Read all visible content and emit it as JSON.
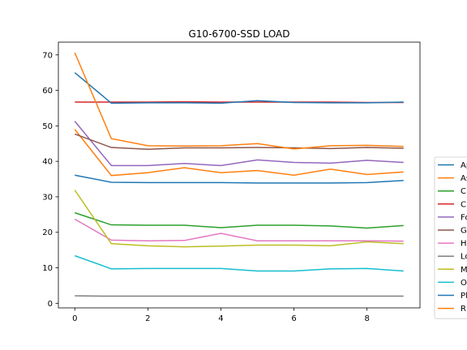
{
  "chart_data": {
    "type": "line",
    "title": "G10-6700-SSD LOAD",
    "xlabel": "",
    "ylabel": "",
    "x": [
      0,
      1,
      2,
      3,
      4,
      5,
      6,
      7,
      8,
      9
    ],
    "xlim": [
      -0.45,
      9.45
    ],
    "ylim": [
      -1.3,
      73.6
    ],
    "xticks": [
      0,
      2,
      4,
      6,
      8
    ],
    "yticks": [
      0,
      10,
      20,
      30,
      40,
      50,
      60,
      70
    ],
    "grid": false,
    "legend": "right-outside",
    "series": [
      {
        "name": "Ap",
        "color": "#1f77b4",
        "values": [
          36.1,
          34.1,
          34.0,
          34.0,
          34.0,
          33.9,
          33.9,
          33.9,
          34.0,
          34.6
        ]
      },
      {
        "name": "As",
        "color": "#ff7f0e",
        "values": [
          49.0,
          36.0,
          36.8,
          38.2,
          36.8,
          37.4,
          36.1,
          37.8,
          36.3,
          37.0
        ]
      },
      {
        "name": "C",
        "color": "#2ca02c",
        "values": [
          25.5,
          22.1,
          22.0,
          22.0,
          21.3,
          22.0,
          22.0,
          21.8,
          21.2,
          21.9
        ]
      },
      {
        "name": "C",
        "color": "#d62728",
        "values": [
          56.7,
          56.7,
          56.7,
          56.8,
          56.7,
          56.7,
          56.7,
          56.7,
          56.6,
          56.6
        ]
      },
      {
        "name": "Fo",
        "color": "#9467bd",
        "values": [
          51.3,
          38.8,
          38.8,
          39.4,
          38.8,
          40.4,
          39.7,
          39.5,
          40.3,
          39.7
        ]
      },
      {
        "name": "G",
        "color": "#8c564b",
        "values": [
          47.7,
          43.9,
          43.4,
          43.8,
          43.8,
          43.9,
          43.8,
          43.6,
          43.9,
          43.7
        ]
      },
      {
        "name": "H",
        "color": "#e377c2",
        "values": [
          23.7,
          17.8,
          17.6,
          17.7,
          19.7,
          17.6,
          17.6,
          17.6,
          17.6,
          17.5
        ]
      },
      {
        "name": "Lo",
        "color": "#7f7f7f",
        "values": [
          2.1,
          2.0,
          2.0,
          2.0,
          2.0,
          2.0,
          2.0,
          2.0,
          2.0,
          2.0
        ]
      },
      {
        "name": "M",
        "color": "#bcbd22",
        "values": [
          31.9,
          16.8,
          16.2,
          15.9,
          16.1,
          16.4,
          16.4,
          16.2,
          17.3,
          16.8
        ]
      },
      {
        "name": "O",
        "color": "#17becf",
        "values": [
          13.4,
          9.7,
          9.8,
          9.8,
          9.8,
          9.1,
          9.1,
          9.7,
          9.8,
          9.1
        ]
      },
      {
        "name": "Pl",
        "color": "#1f77b4",
        "values": [
          65.0,
          56.4,
          56.5,
          56.5,
          56.4,
          57.1,
          56.6,
          56.5,
          56.5,
          56.7
        ]
      },
      {
        "name": "R",
        "color": "#ff7f0e",
        "values": [
          70.6,
          46.4,
          44.4,
          44.3,
          44.4,
          45.0,
          43.5,
          44.4,
          44.5,
          44.2
        ]
      }
    ]
  }
}
